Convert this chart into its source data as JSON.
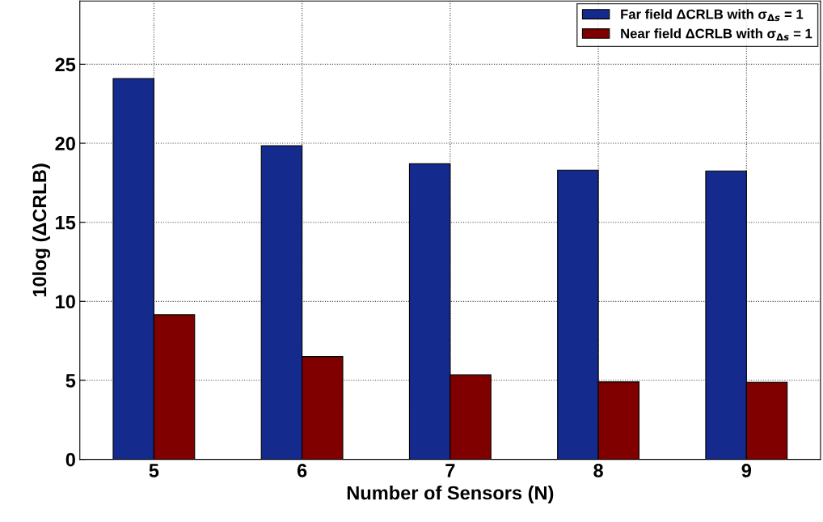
{
  "chart_data": {
    "type": "bar",
    "xlabel": "Number of Sensors (N)",
    "ylabel": "10log (ΔCRLB)",
    "categories": [
      "5",
      "6",
      "7",
      "8",
      "9"
    ],
    "series": [
      {
        "name": "Far field ΔCRLB with σ$_{Δs}$ = 1",
        "color": "#142a8c",
        "values": [
          24.1,
          19.85,
          18.7,
          18.3,
          18.25
        ]
      },
      {
        "name": "Near field ΔCRLB with σ$_{Δs}$ = 1",
        "color": "#800000",
        "values": [
          9.15,
          6.5,
          5.35,
          4.9,
          4.88
        ]
      }
    ],
    "ylim": [
      0,
      29
    ],
    "yticks": [
      0,
      5,
      10,
      15,
      20,
      25
    ],
    "grid": true,
    "legend": "top right"
  }
}
